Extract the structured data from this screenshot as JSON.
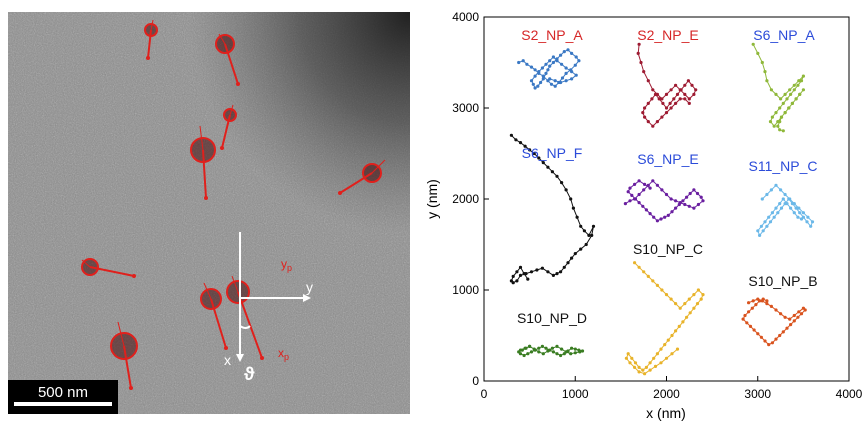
{
  "micrograph": {
    "scale_bar_label": "500 nm",
    "axis_labels": {
      "x": "x",
      "y": "y",
      "xp": "x",
      "xp_sub": "p",
      "yp": "y",
      "yp_sub": "p",
      "theta": "ϑ"
    },
    "colors": {
      "annotation": "#e0201c",
      "axes": "#ffffff",
      "background": "#808080"
    }
  },
  "chart_data": {
    "type": "scatter",
    "xlabel": "x (nm)",
    "ylabel": "y (nm)",
    "xlim": [
      0,
      4000
    ],
    "ylim": [
      0,
      4000
    ],
    "xticks": [
      0,
      1000,
      2000,
      3000,
      4000
    ],
    "yticks": [
      0,
      1000,
      2000,
      3000,
      4000
    ],
    "grid": false,
    "series": [
      {
        "name": "S2_NP_A",
        "color": "#3a78c4",
        "label_color": "#d62728",
        "x": [
          380,
          430,
          470,
          520,
          560,
          600,
          650,
          700,
          740,
          780,
          820,
          860,
          900,
          950,
          1000,
          1040,
          1010,
          960,
          920,
          880,
          840,
          800,
          760,
          720,
          700,
          680,
          650,
          620,
          590,
          560,
          540,
          520,
          560,
          600,
          640,
          680,
          720,
          760,
          800,
          850,
          900,
          960,
          1010,
          960,
          900,
          840,
          780,
          720
        ],
        "y": [
          3500,
          3520,
          3480,
          3450,
          3420,
          3380,
          3350,
          3300,
          3260,
          3240,
          3280,
          3330,
          3380,
          3420,
          3470,
          3520,
          3560,
          3600,
          3640,
          3620,
          3580,
          3540,
          3500,
          3460,
          3420,
          3380,
          3320,
          3280,
          3240,
          3220,
          3260,
          3300,
          3350,
          3400,
          3440,
          3480,
          3520,
          3560,
          3520,
          3480,
          3440,
          3400,
          3360,
          3320,
          3300,
          3280,
          3300,
          3320
        ]
      },
      {
        "name": "S2_NP_E",
        "color": "#9e1b32",
        "label_color": "#d62728",
        "x": [
          1700,
          1690,
          1720,
          1750,
          1800,
          1850,
          1900,
          1950,
          2000,
          2050,
          2100,
          2150,
          2200,
          2250,
          2300,
          2320,
          2280,
          2240,
          2200,
          2160,
          2120,
          2080,
          2040,
          2000,
          1960,
          1920,
          1880,
          1840,
          1800,
          1760,
          1740,
          1760,
          1800,
          1850,
          1900,
          1950,
          2000,
          2050,
          2100,
          2150,
          2200,
          2250
        ],
        "y": [
          3700,
          3600,
          3500,
          3400,
          3300,
          3200,
          3150,
          3100,
          3150,
          3200,
          3250,
          3200,
          3150,
          3100,
          3150,
          3200,
          3250,
          3300,
          3250,
          3200,
          3150,
          3100,
          3050,
          3000,
          3050,
          3100,
          3150,
          3100,
          3050,
          3000,
          2950,
          2900,
          2850,
          2800,
          2850,
          2900,
          2950,
          3000,
          3050,
          3100,
          3100,
          3050
        ]
      },
      {
        "name": "S6_NP_A",
        "color": "#8fb83a",
        "label_color": "#2b4bd9",
        "x": [
          2950,
          3000,
          3050,
          3080,
          3100,
          3150,
          3200,
          3250,
          3300,
          3350,
          3400,
          3450,
          3500,
          3480,
          3440,
          3400,
          3360,
          3320,
          3280,
          3240,
          3200,
          3160,
          3140,
          3180,
          3220,
          3260,
          3300,
          3340,
          3380,
          3420,
          3460,
          3500,
          3460,
          3420,
          3380,
          3340,
          3300,
          3260,
          3240,
          3220,
          3240,
          3280
        ],
        "y": [
          3700,
          3600,
          3500,
          3400,
          3300,
          3200,
          3150,
          3100,
          3150,
          3200,
          3250,
          3300,
          3350,
          3300,
          3250,
          3200,
          3150,
          3100,
          3050,
          3000,
          2950,
          2900,
          2850,
          2800,
          2850,
          2900,
          2950,
          3000,
          3050,
          3100,
          3150,
          3200,
          3150,
          3100,
          3050,
          3000,
          2950,
          2900,
          2850,
          2800,
          2760,
          2750
        ]
      },
      {
        "name": "S6_NP_F",
        "color": "#111111",
        "label_color": "#2b4bd9",
        "x": [
          300,
          350,
          400,
          450,
          500,
          550,
          600,
          650,
          700,
          750,
          800,
          850,
          900,
          950,
          980,
          1020,
          1060,
          1100,
          1150,
          1200,
          1180,
          1120,
          1060,
          1000,
          960,
          920,
          880,
          840,
          800,
          760,
          700,
          640,
          580,
          520,
          460,
          400,
          360,
          320,
          300,
          320,
          360,
          400,
          440,
          480
        ],
        "y": [
          2700,
          2650,
          2620,
          2580,
          2540,
          2500,
          2450,
          2400,
          2350,
          2300,
          2250,
          2180,
          2100,
          2000,
          1900,
          1800,
          1700,
          1650,
          1600,
          1700,
          1600,
          1500,
          1450,
          1400,
          1350,
          1300,
          1250,
          1200,
          1180,
          1160,
          1200,
          1240,
          1220,
          1200,
          1180,
          1160,
          1100,
          1080,
          1100,
          1150,
          1200,
          1250,
          1180,
          1120
        ]
      },
      {
        "name": "S6_NP_E",
        "color": "#6a1fa0",
        "label_color": "#2b4bd9",
        "x": [
          1550,
          1600,
          1650,
          1700,
          1750,
          1800,
          1850,
          1900,
          1950,
          2000,
          2050,
          2100,
          2150,
          2200,
          2250,
          2300,
          2350,
          2400,
          2380,
          2340,
          2300,
          2260,
          2220,
          2180,
          2140,
          2100,
          2060,
          2020,
          1980,
          1940,
          1900,
          1860,
          1820,
          1780,
          1740,
          1700,
          1660,
          1620,
          1580,
          1600,
          1650,
          1700,
          1760,
          1820
        ],
        "y": [
          1950,
          1980,
          2000,
          2050,
          2100,
          2150,
          2200,
          2150,
          2100,
          2050,
          2000,
          1980,
          1960,
          1940,
          1920,
          1900,
          1940,
          1980,
          2020,
          2060,
          2100,
          2060,
          2020,
          1980,
          1940,
          1900,
          1860,
          1820,
          1800,
          1780,
          1760,
          1800,
          1840,
          1880,
          1920,
          1960,
          2000,
          2040,
          2080,
          2120,
          2160,
          2200,
          2160,
          2120
        ]
      },
      {
        "name": "S11_NP_C",
        "color": "#6bb8e8",
        "label_color": "#2b4bd9",
        "x": [
          3050,
          3100,
          3150,
          3200,
          3250,
          3300,
          3350,
          3400,
          3450,
          3500,
          3550,
          3600,
          3580,
          3540,
          3500,
          3460,
          3420,
          3380,
          3340,
          3300,
          3260,
          3220,
          3180,
          3140,
          3100,
          3060,
          3020,
          3000,
          3040,
          3080,
          3120,
          3160,
          3200,
          3240,
          3280,
          3320,
          3360,
          3400,
          3440,
          3480
        ],
        "y": [
          2000,
          2050,
          2100,
          2150,
          2100,
          2050,
          2000,
          1950,
          1900,
          1850,
          1800,
          1750,
          1700,
          1750,
          1800,
          1850,
          1900,
          1950,
          2000,
          1950,
          1900,
          1850,
          1800,
          1750,
          1700,
          1650,
          1600,
          1650,
          1700,
          1750,
          1800,
          1850,
          1900,
          1950,
          2000,
          1950,
          1900,
          1850,
          1800,
          1780
        ]
      },
      {
        "name": "S10_NP_C",
        "color": "#e8b32a",
        "label_color": "#111111",
        "x": [
          1650,
          1700,
          1750,
          1800,
          1850,
          1900,
          1950,
          2000,
          2050,
          2100,
          2150,
          2200,
          2250,
          2300,
          2350,
          2400,
          2380,
          2340,
          2300,
          2260,
          2220,
          2180,
          2140,
          2100,
          2060,
          2020,
          1980,
          1940,
          1900,
          1860,
          1820,
          1780,
          1740,
          1700,
          1660,
          1620,
          1580,
          1560,
          1600,
          1650,
          1700,
          1760,
          1820,
          1880,
          1940,
          2000,
          2060,
          2120
        ],
        "y": [
          1300,
          1250,
          1200,
          1150,
          1100,
          1050,
          1000,
          950,
          900,
          850,
          800,
          850,
          900,
          950,
          1000,
          950,
          900,
          850,
          800,
          750,
          700,
          650,
          600,
          550,
          500,
          450,
          400,
          350,
          300,
          250,
          200,
          150,
          120,
          150,
          200,
          250,
          300,
          250,
          200,
          150,
          100,
          80,
          120,
          160,
          200,
          250,
          300,
          350
        ]
      },
      {
        "name": "S10_NP_D",
        "color": "#3a7d22",
        "label_color": "#111111",
        "x": [
          400,
          450,
          500,
          550,
          600,
          650,
          700,
          750,
          800,
          850,
          900,
          950,
          1000,
          1050,
          1080,
          1040,
          1000,
          960,
          920,
          880,
          840,
          800,
          760,
          720,
          680,
          640,
          600,
          560,
          520,
          480,
          440,
          400,
          380,
          420,
          460,
          500
        ],
        "y": [
          340,
          360,
          380,
          350,
          320,
          300,
          330,
          360,
          380,
          350,
          320,
          300,
          310,
          320,
          330,
          340,
          350,
          360,
          330,
          300,
          280,
          300,
          320,
          340,
          360,
          380,
          360,
          340,
          320,
          300,
          280,
          300,
          320,
          340,
          360,
          380
        ]
      },
      {
        "name": "S10_NP_B",
        "color": "#d9531e",
        "label_color": "#111111",
        "x": [
          2900,
          2950,
          3000,
          3050,
          3100,
          3150,
          3200,
          3250,
          3300,
          3350,
          3400,
          3450,
          3500,
          3520,
          3480,
          3440,
          3400,
          3360,
          3320,
          3280,
          3240,
          3200,
          3160,
          3120,
          3080,
          3040,
          3000,
          2960,
          2920,
          2880,
          2840,
          2860,
          2900,
          2940,
          2980,
          3020,
          3060,
          3100
        ],
        "y": [
          860,
          880,
          900,
          880,
          850,
          820,
          780,
          740,
          700,
          680,
          720,
          760,
          800,
          780,
          740,
          700,
          660,
          620,
          580,
          540,
          500,
          460,
          420,
          400,
          440,
          480,
          520,
          560,
          600,
          640,
          680,
          720,
          760,
          800,
          840,
          880,
          900,
          880
        ]
      }
    ]
  }
}
